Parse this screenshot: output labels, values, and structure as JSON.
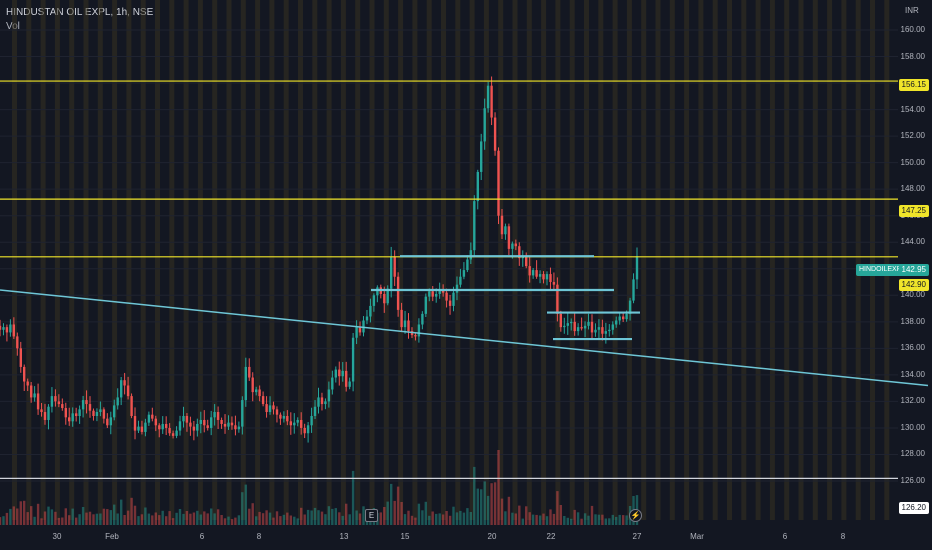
{
  "legend": {
    "title": "HINDUSTAN OIL EXPL, 1h, NSE",
    "volume_label": "Vol"
  },
  "currency": "INR",
  "price_tags": {
    "level_156": "156.15",
    "level_147": "147.25",
    "last_price": "142.95",
    "level_142": "142.90",
    "level_126": "126.20",
    "symbol": "HINDOILEXP"
  },
  "markers": {
    "earnings": "E",
    "dividend": "⚡"
  },
  "colors": {
    "background": "#131722",
    "up": "#26a69a",
    "down": "#ef5350",
    "yellow_line": "#f0e52a",
    "cyan_line": "#6ec6d6",
    "session_band": "#3a331f"
  },
  "chart_data": {
    "type": "candlestick",
    "symbol": "HINDOILEXP",
    "exchange": "NSE",
    "interval": "1h",
    "y_axis": {
      "ticks": [
        "126.00",
        "128.00",
        "130.00",
        "132.00",
        "134.00",
        "136.00",
        "138.00",
        "140.00",
        "142.00",
        "144.00",
        "146.00",
        "148.00",
        "150.00",
        "152.00",
        "154.00",
        "156.00",
        "158.00",
        "160.00"
      ],
      "range": [
        125.5,
        161.5
      ]
    },
    "x_axis": {
      "ticks": [
        "30",
        "Feb",
        "6",
        "8",
        "13",
        "15",
        "20",
        "22",
        "27",
        "Mar",
        "6",
        "8"
      ]
    },
    "horizontal_levels": [
      156.15,
      147.25,
      142.9,
      126.2
    ],
    "last_price": 142.95,
    "closes": [
      137.4,
      137.6,
      137.2,
      137.8,
      136.9,
      136.0,
      134.6,
      133.5,
      133.2,
      132.3,
      132.6,
      131.4,
      131.2,
      130.6,
      131.6,
      132.4,
      132.0,
      131.8,
      131.5,
      130.8,
      130.5,
      131.1,
      130.9,
      131.4,
      132.1,
      131.8,
      131.3,
      130.9,
      131.2,
      131.4,
      130.7,
      130.2,
      130.8,
      131.7,
      132.3,
      133.6,
      133.2,
      132.4,
      130.9,
      129.8,
      130.1,
      129.7,
      130.4,
      131.0,
      130.7,
      130.2,
      129.9,
      130.3,
      130.0,
      129.6,
      129.4,
      129.8,
      130.5,
      130.9,
      130.4,
      130.1,
      129.8,
      130.3,
      130.6,
      130.2,
      130.0,
      130.8,
      131.2,
      130.6,
      130.3,
      130.1,
      130.4,
      130.2,
      129.9,
      130.1,
      132.1,
      134.6,
      133.8,
      132.7,
      132.9,
      132.4,
      131.8,
      131.2,
      131.7,
      131.4,
      131.0,
      130.7,
      130.9,
      130.5,
      130.2,
      130.4,
      130.6,
      130.0,
      129.6,
      130.2,
      130.9,
      131.6,
      132.3,
      131.8,
      132.0,
      132.9,
      133.8,
      134.4,
      133.9,
      134.3,
      133.1,
      133.5,
      136.8,
      137.6,
      137.2,
      138.1,
      138.4,
      139.2,
      140.0,
      140.6,
      140.1,
      139.4,
      140.5,
      142.9,
      141.4,
      138.9,
      137.6,
      138.1,
      137.3,
      137.0,
      136.9,
      137.8,
      138.6,
      139.9,
      140.3,
      139.9,
      140.1,
      140.4,
      140.2,
      139.6,
      139.2,
      140.2,
      140.8,
      141.4,
      141.9,
      142.7,
      143.4,
      147.1,
      149.3,
      151.6,
      154.1,
      155.8,
      153.4,
      150.9,
      146.0,
      144.6,
      145.2,
      143.5,
      143.9,
      143.7,
      142.8,
      143.0,
      142.2,
      141.5,
      141.9,
      141.4,
      141.6,
      141.2,
      141.6,
      141.0,
      140.8,
      138.6,
      137.6,
      137.7,
      137.9,
      138.0,
      137.3,
      137.6,
      137.5,
      137.7,
      138.0,
      137.2,
      137.4,
      137.6,
      137.1,
      137.3,
      137.4,
      137.8,
      138.1,
      138.4,
      138.2,
      138.6,
      139.6,
      141.2,
      142.95
    ],
    "drawings": [
      {
        "type": "horizontal_line",
        "value": 156.15,
        "color": "yellow"
      },
      {
        "type": "horizontal_line",
        "value": 147.25,
        "color": "yellow"
      },
      {
        "type": "horizontal_line",
        "value": 142.9,
        "color": "yellow"
      },
      {
        "type": "horizontal_line",
        "value": 126.2,
        "color": "white"
      },
      {
        "type": "trend_line",
        "color": "cyan",
        "from": [
          0,
          140.4
        ],
        "to": [
          928,
          133.2
        ]
      },
      {
        "type": "segment",
        "value": 142.95,
        "color": "cyan"
      },
      {
        "type": "segment",
        "value": 140.4,
        "color": "cyan"
      },
      {
        "type": "segment",
        "value": 138.7,
        "color": "cyan"
      },
      {
        "type": "segment",
        "value": 136.7,
        "color": "cyan"
      }
    ]
  }
}
